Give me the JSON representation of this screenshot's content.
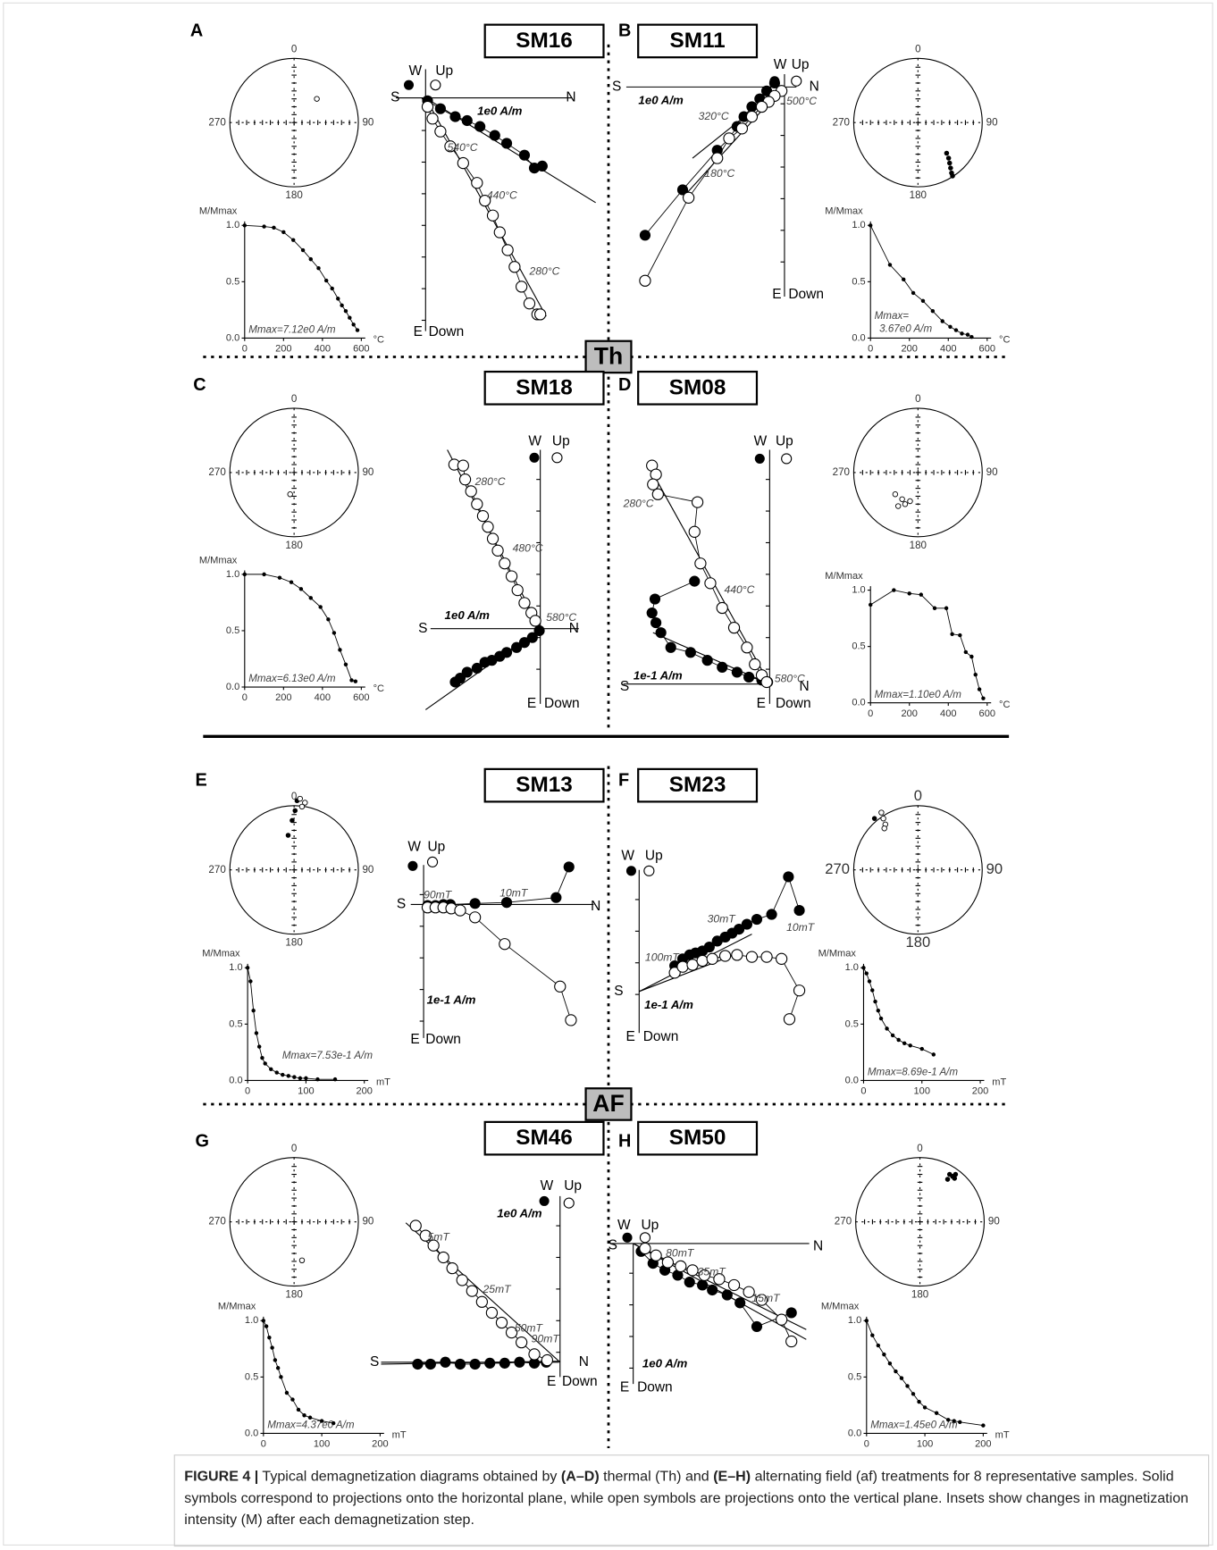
{
  "panels": [
    {
      "letter": "A",
      "sample": "SM16",
      "stereonet": [
        "0",
        "90",
        "180",
        "270"
      ],
      "zijderveld": [
        "W",
        "Up",
        "S",
        "N",
        "E",
        "Down",
        "1e0 A/m",
        "540°C",
        "440°C",
        "280°C"
      ],
      "decay": {
        "ylabel": "M/Mmax",
        "unit": "°C",
        "note": [
          "Mmax=7.12e0 A/m"
        ],
        "xlim": [
          0,
          600
        ],
        "ylim": [
          0,
          1
        ],
        "xticks": [
          0,
          200,
          400,
          600
        ],
        "yticks": [
          {
            "value": 0,
            "label": "0.0"
          },
          0.5,
          {
            "value": 1,
            "label": "1.0"
          }
        ],
        "x": [
          0,
          100,
          150,
          200,
          250,
          300,
          340,
          380,
          420,
          450,
          480,
          500,
          520,
          540,
          560,
          580
        ],
        "y": [
          1.0,
          0.99,
          0.98,
          0.94,
          0.87,
          0.78,
          0.7,
          0.62,
          0.51,
          0.44,
          0.35,
          0.29,
          0.24,
          0.18,
          0.12,
          0.07
        ]
      }
    },
    {
      "letter": "B",
      "sample": "SM11",
      "stereonet": [
        "0",
        "90",
        "180",
        "270"
      ],
      "zijderveld": [
        "W",
        "Up",
        "S",
        "N",
        "E",
        "Down",
        "1e0 A/m",
        "500°C",
        "320°C",
        "180°C"
      ],
      "decay": {
        "ylabel": "M/Mmax",
        "unit": "°C",
        "note": [
          "Mmax=",
          "3.67e0 A/m"
        ],
        "xlim": [
          0,
          600
        ],
        "ylim": [
          0,
          1
        ],
        "xticks": [
          0,
          200,
          400,
          600
        ],
        "yticks": [
          {
            "value": 0,
            "label": "0.0"
          },
          0.5,
          {
            "value": 1,
            "label": "1.0"
          }
        ],
        "x": [
          0,
          100,
          170,
          220,
          270,
          320,
          370,
          410,
          440,
          470,
          500,
          520
        ],
        "y": [
          1.0,
          0.65,
          0.52,
          0.4,
          0.33,
          0.24,
          0.15,
          0.1,
          0.07,
          0.04,
          0.03,
          0.01
        ]
      }
    },
    {
      "letter": "C",
      "sample": "SM18",
      "stereonet": [
        "0",
        "90",
        "180",
        "270"
      ],
      "zijderveld": [
        "W",
        "Up",
        "S",
        "N",
        "E",
        "Down",
        "1e0 A/m",
        "280°C",
        "480°C",
        "580°C"
      ],
      "decay": {
        "ylabel": "M/Mmax",
        "unit": "°C",
        "note": [
          "Mmax=6.13e0 A/m"
        ],
        "xlim": [
          0,
          600
        ],
        "ylim": [
          0,
          1
        ],
        "xticks": [
          0,
          200,
          400,
          600
        ],
        "yticks": [
          {
            "value": 0,
            "label": "0.0"
          },
          0.5,
          {
            "value": 1,
            "label": "1.0"
          }
        ],
        "x": [
          0,
          100,
          180,
          240,
          290,
          340,
          390,
          430,
          460,
          490,
          520,
          550,
          570
        ],
        "y": [
          1.0,
          1.0,
          0.97,
          0.93,
          0.87,
          0.79,
          0.71,
          0.6,
          0.48,
          0.33,
          0.2,
          0.06,
          0.05
        ]
      }
    },
    {
      "letter": "D",
      "sample": "SM08",
      "stereonet": [
        "0",
        "90",
        "180",
        "270"
      ],
      "zijderveld": [
        "W",
        "Up",
        "S",
        "N",
        "E",
        "Down",
        "1e-1 A/m",
        "280°C",
        "440°C",
        "580°C"
      ],
      "decay": {
        "ylabel": "M/Mmax",
        "unit": "°C",
        "note": [
          "Mmax=1.10e0 A/m"
        ],
        "xlim": [
          0,
          600
        ],
        "ylim": [
          0,
          1
        ],
        "xticks": [
          0,
          200,
          400,
          600
        ],
        "yticks": [
          {
            "value": 0,
            "label": "0.0"
          },
          0.5,
          {
            "value": 1,
            "label": "1.0"
          }
        ],
        "x": [
          0,
          120,
          200,
          260,
          330,
          390,
          420,
          460,
          490,
          520,
          540,
          560,
          580
        ],
        "y": [
          0.87,
          1.0,
          0.97,
          0.96,
          0.84,
          0.84,
          0.61,
          0.6,
          0.45,
          0.41,
          0.25,
          0.12,
          0.04
        ]
      }
    },
    {
      "letter": "E",
      "sample": "SM13",
      "stereonet": [
        "0",
        "90",
        "180",
        "270"
      ],
      "zijderveld": [
        "W",
        "Up",
        "S",
        "N",
        "E",
        "Down",
        "1e-1 A/m",
        "90mT",
        "10mT"
      ],
      "decay": {
        "ylabel": "M/Mmax",
        "unit": "mT",
        "note": [
          "Mmax=7.53e-1 A/m"
        ],
        "xlim": [
          0,
          200
        ],
        "ylim": [
          0,
          1
        ],
        "xticks": [
          0,
          100,
          200
        ],
        "yticks": [
          {
            "value": 0,
            "label": "0.0"
          },
          0.5,
          {
            "value": 1,
            "label": "1.0"
          }
        ],
        "x": [
          0,
          5,
          10,
          15,
          20,
          25,
          30,
          40,
          50,
          60,
          70,
          80,
          90,
          100,
          120,
          150
        ],
        "y": [
          1.0,
          0.88,
          0.62,
          0.42,
          0.3,
          0.2,
          0.15,
          0.1,
          0.07,
          0.05,
          0.04,
          0.03,
          0.02,
          0.02,
          0.01,
          0.01
        ]
      }
    },
    {
      "letter": "F",
      "sample": "SM23",
      "stereonet": [
        "0",
        "90",
        "180",
        "270"
      ],
      "zijderveld": [
        "W",
        "Up",
        "S",
        "E",
        "Down",
        "1e-1 A/m",
        "100mT",
        "30mT",
        "10mT"
      ],
      "decay": {
        "ylabel": "M/Mmax",
        "unit": "mT",
        "note": [
          "Mmax=8.69e-1 A/m"
        ],
        "xlim": [
          0,
          200
        ],
        "ylim": [
          0,
          1
        ],
        "xticks": [
          0,
          100,
          200
        ],
        "yticks": [
          {
            "value": 0,
            "label": "0.0"
          },
          0.5,
          {
            "value": 1,
            "label": "1.0"
          }
        ],
        "x": [
          0,
          5,
          10,
          15,
          20,
          25,
          30,
          40,
          50,
          60,
          70,
          80,
          100,
          120
        ],
        "y": [
          1.0,
          0.95,
          0.88,
          0.8,
          0.7,
          0.62,
          0.55,
          0.46,
          0.4,
          0.36,
          0.33,
          0.31,
          0.28,
          0.23
        ]
      }
    },
    {
      "letter": "G",
      "sample": "SM46",
      "stereonet": [
        "0",
        "90",
        "180",
        "270"
      ],
      "zijderveld": [
        "W",
        "Up",
        "S",
        "N",
        "E",
        "Down",
        "1e0 A/m",
        "5mT",
        "25mT",
        "50mT",
        "90mT"
      ],
      "decay": {
        "ylabel": "M/Mmax",
        "unit": "mT",
        "note": [
          "Mmax=4.37e0 A/m"
        ],
        "xlim": [
          0,
          200
        ],
        "ylim": [
          0,
          1
        ],
        "xticks": [
          0,
          100,
          200
        ],
        "yticks": [
          {
            "value": 0,
            "label": "0.0"
          },
          0.5,
          {
            "value": 1,
            "label": "1.0"
          }
        ],
        "x": [
          0,
          5,
          10,
          15,
          20,
          25,
          30,
          40,
          50,
          60,
          70,
          80,
          100,
          120
        ],
        "y": [
          1.0,
          0.95,
          0.85,
          0.76,
          0.65,
          0.58,
          0.5,
          0.36,
          0.3,
          0.21,
          0.16,
          0.14,
          0.11,
          0.09
        ]
      }
    },
    {
      "letter": "H",
      "sample": "SM50",
      "stereonet": [
        "0",
        "90",
        "180",
        "270"
      ],
      "zijderveld": [
        "W",
        "Up",
        "S",
        "N",
        "E",
        "Down",
        "1e0 A/m",
        "80mT",
        "35mT",
        "15mT"
      ],
      "decay": {
        "ylabel": "M/Mmax",
        "unit": "mT",
        "note": [
          "Mmax=1.45e0 A/m"
        ],
        "xlim": [
          0,
          200
        ],
        "ylim": [
          0,
          1
        ],
        "xticks": [
          0,
          100,
          200
        ],
        "yticks": [
          {
            "value": 0,
            "label": "0.0"
          },
          0.5,
          {
            "value": 1,
            "label": "1.0"
          }
        ],
        "x": [
          0,
          10,
          20,
          30,
          40,
          50,
          60,
          70,
          80,
          90,
          100,
          120,
          140,
          150,
          160,
          200
        ],
        "y": [
          1.0,
          0.87,
          0.78,
          0.7,
          0.62,
          0.55,
          0.49,
          0.42,
          0.35,
          0.28,
          0.23,
          0.18,
          0.12,
          0.11,
          0.1,
          0.07
        ]
      }
    }
  ],
  "dividers": [
    "Th",
    "AF"
  ],
  "caption": [
    {
      "text": "FIGURE 4 |",
      "bold": true
    },
    {
      "text": " Typical demagnetization diagrams obtained by ",
      "bold": false
    },
    {
      "text": "(A–D)",
      "bold": true
    },
    {
      "text": " thermal (Th) and ",
      "bold": false
    },
    {
      "text": "(E–H)",
      "bold": true
    },
    {
      "text": " alternating field (af) treatments for 8 representative samples. Solid symbols correspond to projections onto the horizontal plane, while open symbols are projections onto the vertical plane. Insets show changes in magnetization intensity (M) after each demagnetization step.",
      "bold": false
    }
  ]
}
